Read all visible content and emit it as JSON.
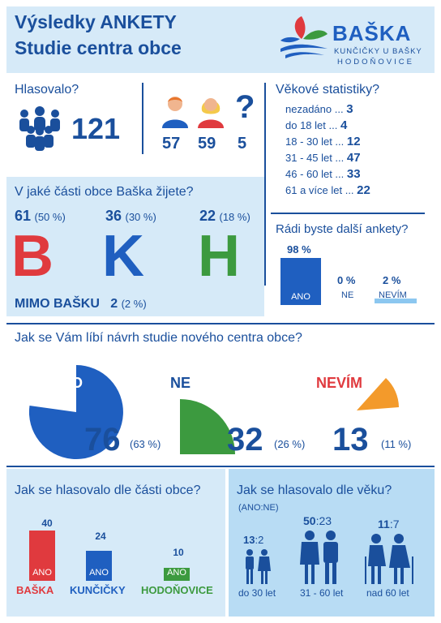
{
  "header": {
    "title_line1": "Výsledky ANKETY",
    "title_line2": "Studie centra obce",
    "logo_name": "BAŠKA",
    "logo_sub1": "KUNČIČKY U BAŠKY",
    "logo_sub2": "HODOŇOVICE"
  },
  "votes": {
    "question": "Hlasovalo?",
    "total": "121",
    "men": "57",
    "women": "59",
    "unknown": "5",
    "unknown_symbol": "?"
  },
  "age_stats": {
    "title": "Věkové statistiky?",
    "rows": [
      {
        "label": "nezadáno ...",
        "value": "3"
      },
      {
        "label": "do 18 let ...",
        "value": "4"
      },
      {
        "label": "18 - 30 let ...",
        "value": "12"
      },
      {
        "label": "31 - 45 let ...",
        "value": "47"
      },
      {
        "label": "46 - 60 let ...",
        "value": "33"
      },
      {
        "label": "61 a více let ...",
        "value": "22"
      }
    ]
  },
  "parts": {
    "question": "V jaké části obce Baška žijete?",
    "b_num": "61",
    "b_pct": "(50 %)",
    "b_letter": "B",
    "k_num": "36",
    "k_pct": "(30 %)",
    "k_letter": "K",
    "h_num": "22",
    "h_pct": "(18 %)",
    "h_letter": "H",
    "mimo_label": "MIMO BAŠKU",
    "mimo_num": "2",
    "mimo_pct": "(2 %)"
  },
  "more_surveys": {
    "question": "Rádi byste další ankety?",
    "ano_pct": "98 %",
    "ano_label": "ANO",
    "ano_value": 98,
    "ne_pct": "0 %",
    "ne_label": "NE",
    "ne_value": 0,
    "nevim_pct": "2 %",
    "nevim_label": "NEVÍM",
    "nevim_value": 2
  },
  "like": {
    "question": "Jak se Vám líbí návrh studie nového centra obce?",
    "ano_label": "ANO",
    "ano_num": "76",
    "ano_pct": "(63 %)",
    "ne_label": "NE",
    "ne_num": "32",
    "ne_pct": "(26 %)",
    "nevim_label": "NEVÍM",
    "nevim_num": "13",
    "nevim_pct": "(11 %)"
  },
  "by_part": {
    "question": "Jak se hlasovalo dle části obce?",
    "bars": [
      {
        "value": "40",
        "bar_label": "ANO",
        "name": "BAŠKA",
        "color": "#e03a3e",
        "n": 40
      },
      {
        "value": "24",
        "bar_label": "ANO",
        "name": "KUNČIČKY",
        "color": "#1f5fc0",
        "n": 24
      },
      {
        "value": "10",
        "bar_label": "ANO",
        "name": "HODOŇOVICE",
        "color": "#3c9a3f",
        "n": 10
      }
    ]
  },
  "by_age": {
    "question": "Jak se hlasovalo dle věku?",
    "legend": "(ANO:NE)",
    "groups": [
      {
        "ano": "13",
        "ne": "2",
        "label": "do 30 let"
      },
      {
        "ano": "50",
        "ne": "23",
        "label": "31 - 60 let"
      },
      {
        "ano": "11",
        "ne": "7",
        "label": "nad 60 let"
      }
    ]
  },
  "colors": {
    "dark_blue": "#1a4f9c",
    "red": "#e03a3e",
    "blue": "#1f5fc0",
    "green": "#3c9a3f",
    "orange": "#f39a2b",
    "panel": "#d6eaf8"
  }
}
